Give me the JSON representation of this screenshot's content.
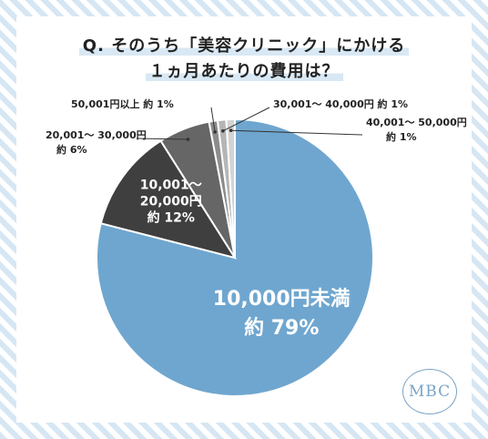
{
  "title_line1": "Q. そのうち「美容クリニック」にかける",
  "title_line2": "１ヵ月あたりの費用は？",
  "logo_text": "MBC",
  "chart_data": {
    "type": "pie",
    "title": "Q. そのうち「美容クリニック」にかける １ヵ月あたりの費用は？",
    "start": "top, clockwise",
    "slices": [
      {
        "label": "10,000円未満",
        "value": 79,
        "value_text": "約 79%",
        "color": "#6fa6cf"
      },
      {
        "label": "10,001～ 20,000円",
        "value": 12,
        "value_text": "約 12%",
        "color": "#3f3f3f"
      },
      {
        "label": "20,001～ 30,000円",
        "value": 6,
        "value_text": "約 6%",
        "color": "#666666"
      },
      {
        "label": "50,001円以上",
        "value": 1,
        "value_text": "約 1%",
        "color": "#8c8c8c"
      },
      {
        "label": "30,001～ 40,000円",
        "value": 1,
        "value_text": "約 1%",
        "color": "#b5b5b5"
      },
      {
        "label": "40,001～ 50,000円",
        "value": 1,
        "value_text": "約 1%",
        "color": "#d3d3d3"
      }
    ]
  }
}
